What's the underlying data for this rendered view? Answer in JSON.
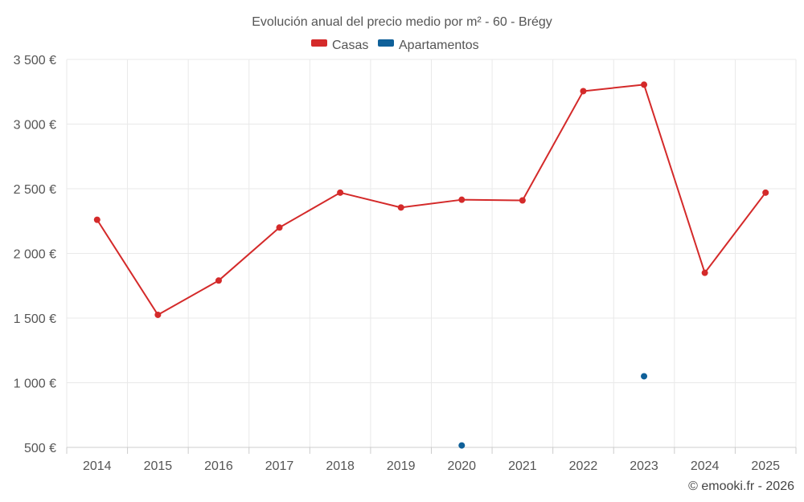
{
  "chart_data": {
    "type": "line",
    "title": "Evolución anual del precio medio por m² - 60 - Brégy",
    "categories": [
      "2014",
      "2015",
      "2016",
      "2017",
      "2018",
      "2019",
      "2020",
      "2021",
      "2022",
      "2023",
      "2024",
      "2025"
    ],
    "series": [
      {
        "name": "Casas",
        "color": "#d42a2a",
        "values": [
          2260,
          1525,
          1790,
          2200,
          2470,
          2355,
          2415,
          2410,
          3255,
          3305,
          1850,
          2470
        ]
      },
      {
        "name": "Apartamentos",
        "color": "#0f6099",
        "values": [
          null,
          null,
          null,
          null,
          null,
          null,
          515,
          null,
          null,
          1050,
          null,
          null
        ]
      }
    ],
    "ylim": [
      500,
      3500
    ],
    "yticks": [
      500,
      1000,
      1500,
      2000,
      2500,
      3000,
      3500
    ],
    "ytick_labels": [
      "500 €",
      "1 000 €",
      "1 500 €",
      "2 000 €",
      "2 500 €",
      "3 000 €",
      "3 500 €"
    ],
    "xlabel": "",
    "ylabel": "",
    "grid": true,
    "legend_position": "top-center"
  },
  "credit": "© emooki.fr - 2026"
}
